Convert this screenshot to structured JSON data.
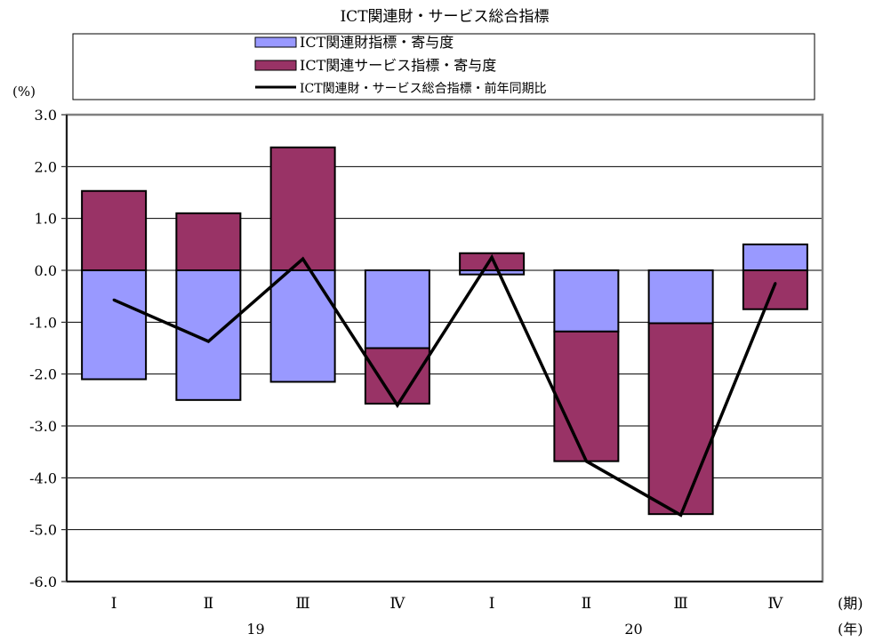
{
  "chart_data": {
    "type": "bar",
    "title": "ICT関連財・サービス総合指標",
    "ylabel": "(%)",
    "xlabel_period": "(期)",
    "xlabel_year": "(年)",
    "ylim": [
      -6.0,
      3.0
    ],
    "yticks": [
      "3.0",
      "2.0",
      "1.0",
      "0.0",
      "-1.0",
      "-2.0",
      "-3.0",
      "-4.0",
      "-5.0",
      "-6.0"
    ],
    "categories": [
      "Ⅰ",
      "Ⅱ",
      "Ⅲ",
      "Ⅳ",
      "Ⅰ",
      "Ⅱ",
      "Ⅲ",
      "Ⅳ"
    ],
    "years": [
      {
        "label": "19",
        "span": [
          0,
          3
        ]
      },
      {
        "label": "20",
        "span": [
          4,
          7
        ]
      }
    ],
    "grid": true,
    "legend_placement": "top",
    "series": [
      {
        "name": "ICT関連財指標・寄与度",
        "kind": "stacked-bar",
        "color": "#9999ff",
        "values": [
          -2.1,
          -2.5,
          -2.15,
          -1.5,
          -0.08,
          -1.18,
          -1.02,
          0.5
        ]
      },
      {
        "name": "ICT関連サービス指標・寄与度",
        "kind": "stacked-bar",
        "color": "#993366",
        "values": [
          1.53,
          1.1,
          2.37,
          -1.07,
          0.33,
          -2.5,
          -3.68,
          -0.75
        ]
      },
      {
        "name": "ICT関連財・サービス総合指標・前年同期比",
        "kind": "line",
        "color": "#000000",
        "values": [
          -0.57,
          -1.37,
          0.22,
          -2.6,
          0.25,
          -3.68,
          -4.72,
          -0.25
        ]
      }
    ]
  }
}
